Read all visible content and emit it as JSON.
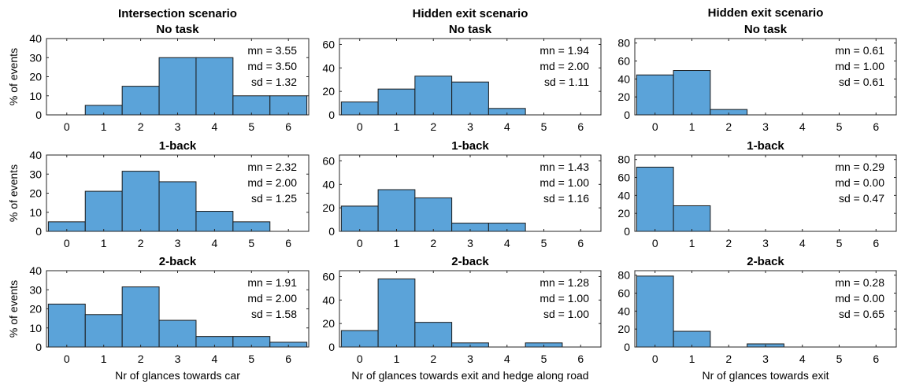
{
  "figure": {
    "bar_color": "#5ba3d9",
    "bar_edge": "#1a1a1a",
    "columns": [
      {
        "title": "Intersection scenario",
        "xlabel": "Nr of glances towards car"
      },
      {
        "title": "Hidden exit scenario",
        "xlabel": "Nr of glances towards exit and hedge along road"
      },
      {
        "title": "Hidden exit scenario",
        "xlabel": "Nr of glances towards exit"
      }
    ],
    "ylabel": "% of events",
    "row_titles": [
      "No task",
      "1-back",
      "2-back"
    ]
  },
  "chart_data": [
    {
      "type": "bar",
      "col": 0,
      "row": 0,
      "title": "Intersection scenario",
      "subtitle": "No task",
      "categories": [
        "0",
        "1",
        "2",
        "3",
        "4",
        "5",
        "6"
      ],
      "values": [
        0,
        5,
        15,
        30,
        30,
        10,
        10
      ],
      "ylim": [
        0,
        40
      ],
      "yticks": [
        "0",
        "10",
        "20",
        "30",
        "40"
      ],
      "stats": [
        "mn = 3.55",
        "md = 3.50",
        "sd = 1.32"
      ]
    },
    {
      "type": "bar",
      "col": 0,
      "row": 1,
      "subtitle": "1-back",
      "categories": [
        "0",
        "1",
        "2",
        "3",
        "4",
        "5",
        "6"
      ],
      "values": [
        5,
        21,
        31.5,
        26,
        10.5,
        5,
        0
      ],
      "ylim": [
        0,
        40
      ],
      "yticks": [
        "0",
        "10",
        "20",
        "30",
        "40"
      ],
      "stats": [
        "mn = 2.32",
        "md = 2.00",
        "sd = 1.25"
      ]
    },
    {
      "type": "bar",
      "col": 0,
      "row": 2,
      "subtitle": "2-back",
      "categories": [
        "0",
        "1",
        "2",
        "3",
        "4",
        "5",
        "6"
      ],
      "values": [
        22.5,
        17,
        31.5,
        14,
        5.5,
        5.5,
        2.5
      ],
      "ylim": [
        0,
        40
      ],
      "yticks": [
        "0",
        "10",
        "20",
        "30",
        "40"
      ],
      "stats": [
        "mn = 1.91",
        "md = 2.00",
        "sd = 1.58"
      ]
    },
    {
      "type": "bar",
      "col": 1,
      "row": 0,
      "title": "Hidden exit scenario",
      "subtitle": "No task",
      "categories": [
        "0",
        "1",
        "2",
        "3",
        "4",
        "5",
        "6"
      ],
      "values": [
        11,
        22,
        33,
        28,
        5.5,
        0,
        0
      ],
      "ylim": [
        0,
        65
      ],
      "yticks": [
        "0",
        "20",
        "40",
        "60"
      ],
      "stats": [
        "mn = 1.94",
        "md = 2.00",
        "sd = 1.11"
      ]
    },
    {
      "type": "bar",
      "col": 1,
      "row": 1,
      "subtitle": "1-back",
      "categories": [
        "0",
        "1",
        "2",
        "3",
        "4",
        "5",
        "6"
      ],
      "values": [
        21.5,
        35.5,
        28.5,
        7,
        7,
        0,
        0
      ],
      "ylim": [
        0,
        65
      ],
      "yticks": [
        "0",
        "20",
        "40",
        "60"
      ],
      "stats": [
        "mn = 1.43",
        "md = 1.00",
        "sd = 1.16"
      ]
    },
    {
      "type": "bar",
      "col": 1,
      "row": 2,
      "subtitle": "2-back",
      "categories": [
        "0",
        "1",
        "2",
        "3",
        "4",
        "5",
        "6"
      ],
      "values": [
        14,
        58,
        21,
        3.5,
        0,
        3.5,
        0
      ],
      "ylim": [
        0,
        65
      ],
      "yticks": [
        "0",
        "20",
        "40",
        "60"
      ],
      "stats": [
        "mn = 1.28",
        "md = 1.00",
        "sd = 1.00"
      ]
    },
    {
      "type": "bar",
      "col": 2,
      "row": 0,
      "title": "Hidden exit scenario",
      "subtitle": "No task",
      "categories": [
        "0",
        "1",
        "2",
        "3",
        "4",
        "5",
        "6"
      ],
      "values": [
        44.5,
        49.5,
        6,
        0,
        0,
        0,
        0
      ],
      "ylim": [
        0,
        85
      ],
      "yticks": [
        "0",
        "20",
        "40",
        "60",
        "80"
      ],
      "stats": [
        "mn = 0.61",
        "md = 1.00",
        "sd = 0.61"
      ]
    },
    {
      "type": "bar",
      "col": 2,
      "row": 1,
      "subtitle": "1-back",
      "categories": [
        "0",
        "1",
        "2",
        "3",
        "4",
        "5",
        "6"
      ],
      "values": [
        71.5,
        28.5,
        0,
        0,
        0,
        0,
        0
      ],
      "ylim": [
        0,
        85
      ],
      "yticks": [
        "0",
        "20",
        "40",
        "60",
        "80"
      ],
      "stats": [
        "mn = 0.29",
        "md = 0.00",
        "sd = 0.47"
      ]
    },
    {
      "type": "bar",
      "col": 2,
      "row": 2,
      "subtitle": "2-back",
      "categories": [
        "0",
        "1",
        "2",
        "3",
        "4",
        "5",
        "6"
      ],
      "values": [
        79,
        17.5,
        0,
        3.5,
        0,
        0,
        0
      ],
      "ylim": [
        0,
        85
      ],
      "yticks": [
        "0",
        "20",
        "40",
        "60",
        "80"
      ],
      "stats": [
        "mn = 0.28",
        "md = 0.00",
        "sd = 0.65"
      ]
    }
  ]
}
